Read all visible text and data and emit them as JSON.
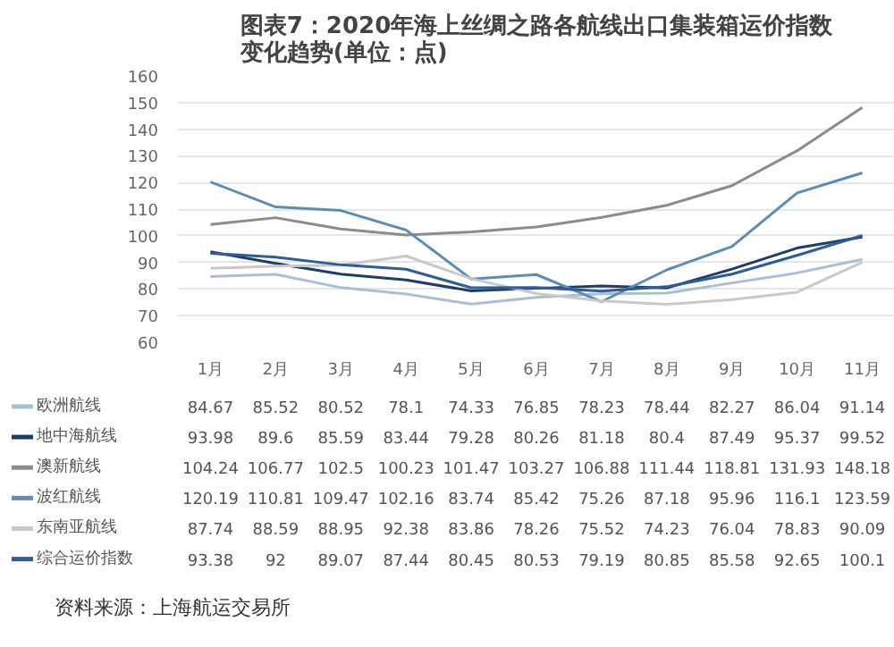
{
  "chart_data": {
    "type": "line",
    "title": "图表7：2020年海上丝绸之路各航线出口集装箱运价指数变化趋势(单位：点)",
    "categories": [
      "1月",
      "2月",
      "3月",
      "4月",
      "5月",
      "6月",
      "7月",
      "8月",
      "9月",
      "10月",
      "11月"
    ],
    "series": [
      {
        "name": "欧洲航线",
        "color": "#a9bfd6",
        "values": [
          84.67,
          85.52,
          80.52,
          78.1,
          74.33,
          76.85,
          78.23,
          78.44,
          82.27,
          86.04,
          91.14
        ]
      },
      {
        "name": "地中海航线",
        "color": "#1f3d6b",
        "values": [
          93.98,
          89.6,
          85.59,
          83.44,
          79.28,
          80.26,
          81.18,
          80.4,
          87.49,
          95.37,
          99.52
        ]
      },
      {
        "name": "澳新航线",
        "color": "#8c8c8c",
        "values": [
          104.24,
          106.77,
          102.5,
          100.23,
          101.47,
          103.27,
          106.88,
          111.44,
          118.81,
          131.93,
          148.18
        ]
      },
      {
        "name": "波红航线",
        "color": "#5b8db8",
        "values": [
          120.19,
          110.81,
          109.47,
          102.16,
          83.74,
          85.42,
          75.26,
          87.18,
          95.96,
          116.1,
          123.59
        ]
      },
      {
        "name": "东南亚航线",
        "color": "#c9c9c9",
        "values": [
          87.74,
          88.59,
          88.95,
          92.38,
          83.86,
          78.26,
          75.52,
          74.23,
          76.04,
          78.83,
          90.09
        ]
      },
      {
        "name": "综合运价指数",
        "color": "#2e5d9a",
        "values": [
          93.38,
          92,
          89.07,
          87.44,
          80.45,
          80.53,
          79.19,
          80.85,
          85.58,
          92.65,
          100.1
        ]
      }
    ],
    "ylim": [
      60,
      160
    ],
    "yticks": [
      60,
      70,
      80,
      90,
      100,
      110,
      120,
      130,
      140,
      150,
      160
    ],
    "grid": "y",
    "legend": "bottom",
    "data_labels": true,
    "annotations": [
      "资料来源：上海航运交易所"
    ]
  }
}
